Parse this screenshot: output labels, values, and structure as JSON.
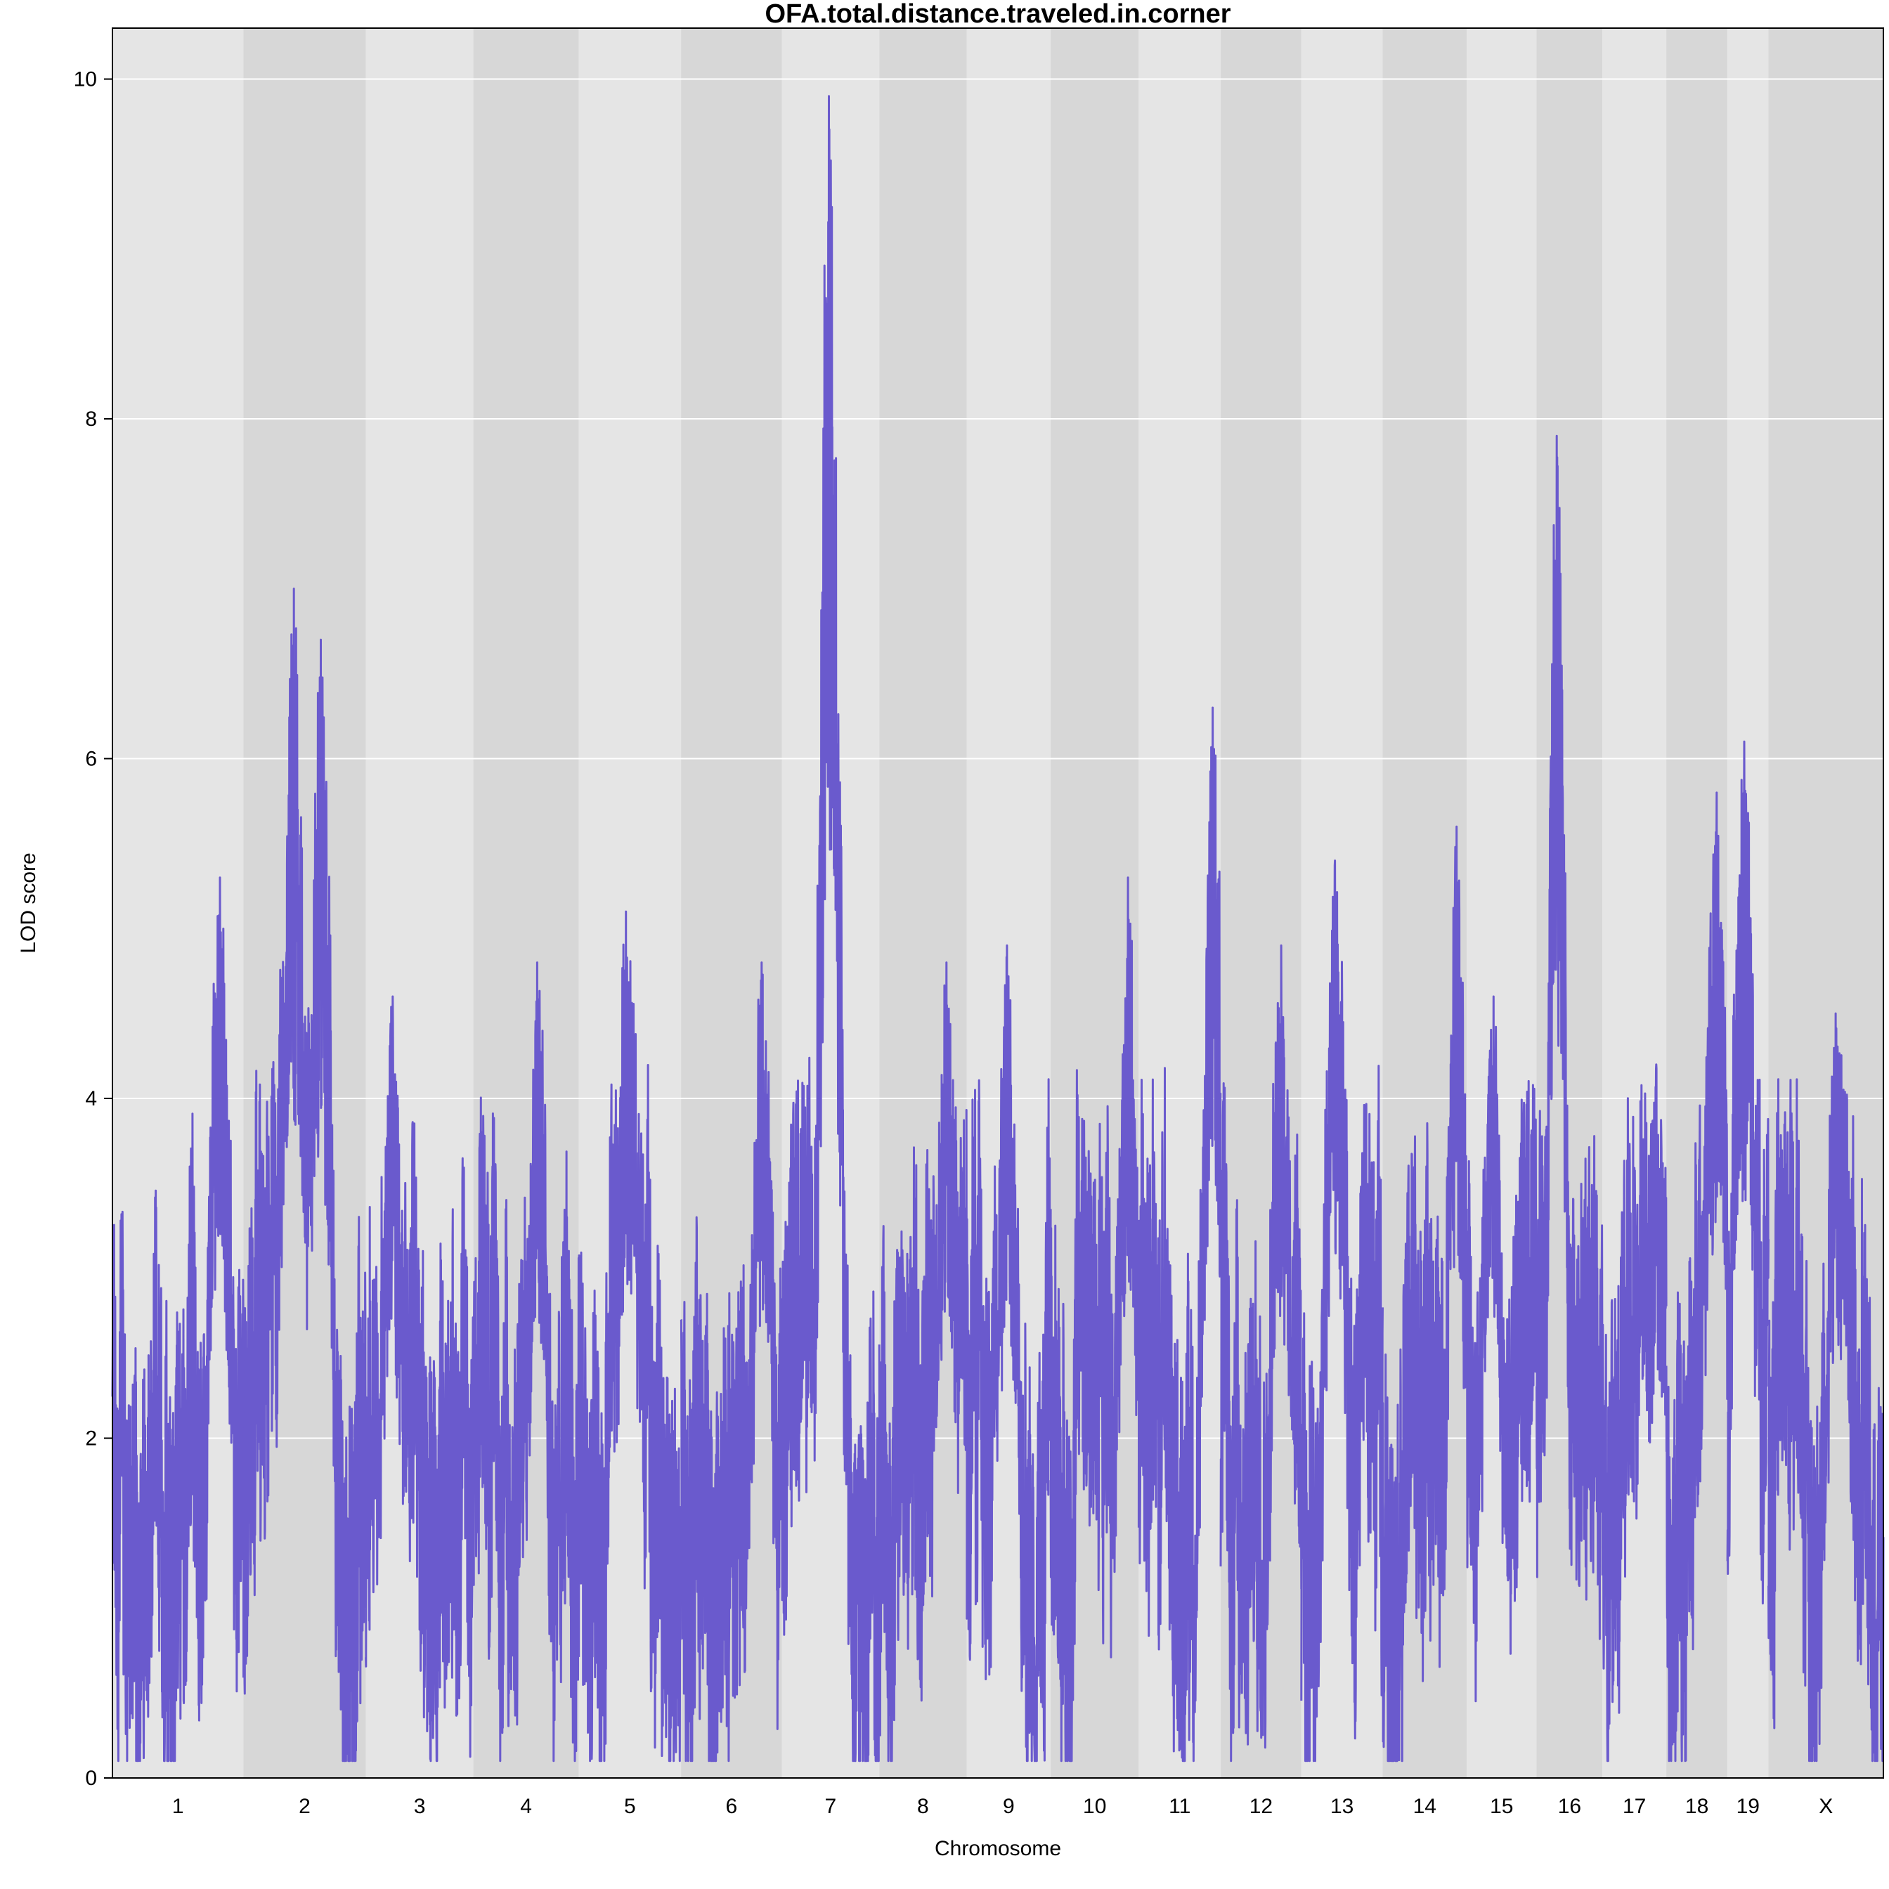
{
  "chart_data": {
    "type": "line",
    "title": "OFA.total.distance.traveled.in.corner",
    "xlabel": "Chromosome",
    "ylabel": "LOD score",
    "ylim": [
      0,
      10.3
    ],
    "y_ticks": [
      0,
      2,
      4,
      6,
      8,
      10
    ],
    "grid": true,
    "line_color": "#6A5ACD",
    "band_colors": [
      "#E5E5E5",
      "#D7D7D7"
    ],
    "gridline_color": "#FFFFFF",
    "chromosomes": [
      "1",
      "2",
      "3",
      "4",
      "5",
      "6",
      "7",
      "8",
      "9",
      "10",
      "11",
      "12",
      "13",
      "14",
      "15",
      "16",
      "17",
      "18",
      "19",
      "X"
    ],
    "chromosome_lengths_mb": [
      195,
      182,
      160,
      157,
      152,
      150,
      145,
      130,
      125,
      131,
      122,
      120,
      121,
      125,
      104,
      98,
      95,
      91,
      61,
      171
    ],
    "series": [
      {
        "name": "",
        "peaks": [
          {
            "chr": "1",
            "pos_mb": 160,
            "lod": 5.3
          },
          {
            "chr": "2",
            "pos_mb": 75,
            "lod": 7.0
          },
          {
            "chr": "2",
            "pos_mb": 115,
            "lod": 6.7
          },
          {
            "chr": "3",
            "pos_mb": 40,
            "lod": 4.6
          },
          {
            "chr": "4",
            "pos_mb": 95,
            "lod": 4.8
          },
          {
            "chr": "5",
            "pos_mb": 70,
            "lod": 5.1
          },
          {
            "chr": "6",
            "pos_mb": 120,
            "lod": 4.8
          },
          {
            "chr": "7",
            "pos_mb": 70,
            "lod": 9.9
          },
          {
            "chr": "8",
            "pos_mb": 100,
            "lod": 4.8
          },
          {
            "chr": "9",
            "pos_mb": 60,
            "lod": 4.9
          },
          {
            "chr": "10",
            "pos_mb": 115,
            "lod": 5.3
          },
          {
            "chr": "11",
            "pos_mb": 110,
            "lod": 6.3
          },
          {
            "chr": "12",
            "pos_mb": 90,
            "lod": 4.9
          },
          {
            "chr": "13",
            "pos_mb": 50,
            "lod": 5.4
          },
          {
            "chr": "14",
            "pos_mb": 110,
            "lod": 5.6
          },
          {
            "chr": "15",
            "pos_mb": 40,
            "lod": 4.6
          },
          {
            "chr": "16",
            "pos_mb": 30,
            "lod": 7.9
          },
          {
            "chr": "17",
            "pos_mb": 80,
            "lod": 4.2
          },
          {
            "chr": "18",
            "pos_mb": 75,
            "lod": 5.8
          },
          {
            "chr": "19",
            "pos_mb": 25,
            "lod": 6.1
          },
          {
            "chr": "X",
            "pos_mb": 100,
            "lod": 4.5
          }
        ]
      }
    ]
  }
}
